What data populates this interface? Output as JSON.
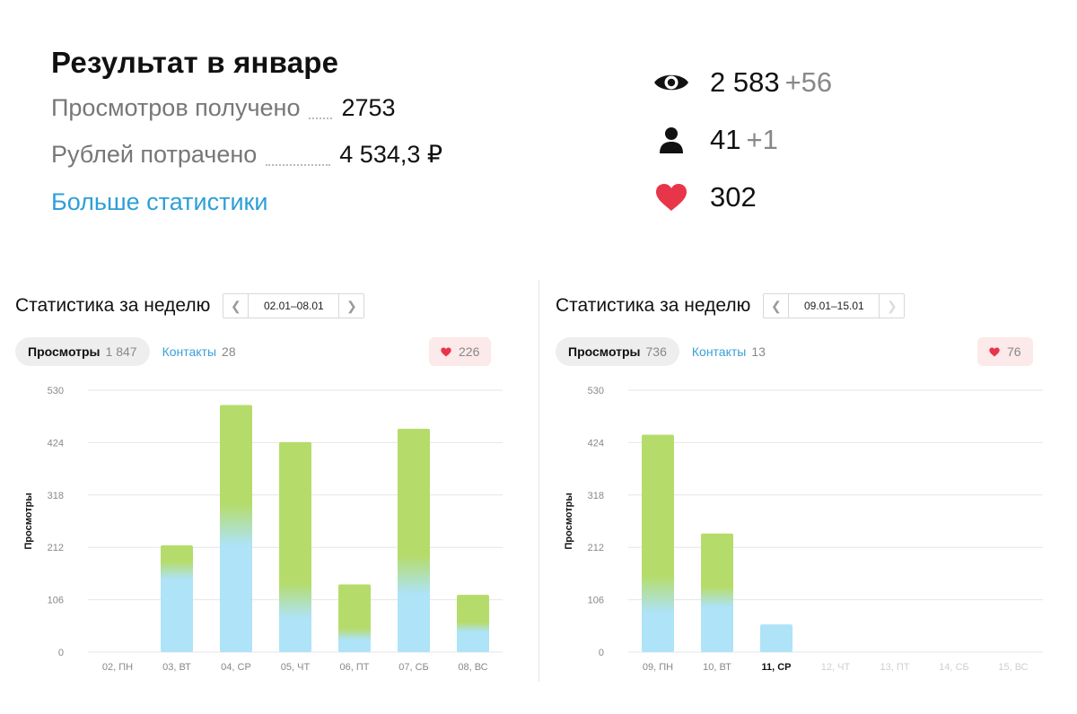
{
  "summary": {
    "title": "Результат в январе",
    "views_label": "Просмотров получено",
    "views_value": "2753",
    "spent_label": "Рублей потрачено",
    "spent_value": "4 534,3 ₽",
    "more_link": "Больше статистики"
  },
  "counters": [
    {
      "icon": "eye-icon",
      "value": "2 583",
      "delta": "+56"
    },
    {
      "icon": "person-icon",
      "value": "41",
      "delta": "+1"
    },
    {
      "icon": "heart-icon",
      "value": "302",
      "delta": ""
    }
  ],
  "colors": {
    "bar_green": "#b5dc6b",
    "bar_blue": "#aee3f8",
    "link": "#2d9fd8",
    "heart": "#e8354a"
  },
  "panels": [
    {
      "title": "Статистика за неделю",
      "range": "02.01–08.01",
      "tab_views_label": "Просмотры",
      "tab_views_count": "1 847",
      "tab_contacts_label": "Контакты",
      "tab_contacts_count": "28",
      "likes_count": "226",
      "next_disabled": false,
      "chart_data": {
        "type": "bar",
        "ylabel": "Просмотры",
        "yticks": [
          0,
          106,
          212,
          318,
          424,
          530
        ],
        "ylim": [
          0,
          530
        ],
        "categories": [
          "02, ПН",
          "03, ВТ",
          "04, СР",
          "05, ЧТ",
          "06, ПТ",
          "07, СБ",
          "08, ВС"
        ],
        "values": [
          0,
          216,
          500,
          425,
          137,
          452,
          116
        ],
        "contact_share": [
          0,
          0.8,
          0.55,
          0.28,
          0.3,
          0.38,
          0.47
        ],
        "active_category": null,
        "future_from": null
      }
    },
    {
      "title": "Статистика за неделю",
      "range": "09.01–15.01",
      "tab_views_label": "Просмотры",
      "tab_views_count": "736",
      "tab_contacts_label": "Контакты",
      "tab_contacts_count": "13",
      "likes_count": "76",
      "next_disabled": true,
      "chart_data": {
        "type": "bar",
        "ylabel": "Просмотры",
        "yticks": [
          0,
          106,
          212,
          318,
          424,
          530
        ],
        "ylim": [
          0,
          530
        ],
        "categories": [
          "09, ПН",
          "10, ВТ",
          "11, СР",
          "12, ЧТ",
          "13, ПТ",
          "14, СБ",
          "15, ВС"
        ],
        "values": [
          440,
          240,
          56,
          0,
          0,
          0,
          0
        ],
        "contact_share": [
          0.3,
          0.5,
          1.0,
          0,
          0,
          0,
          0
        ],
        "active_category": 2,
        "future_from": 3
      }
    }
  ]
}
